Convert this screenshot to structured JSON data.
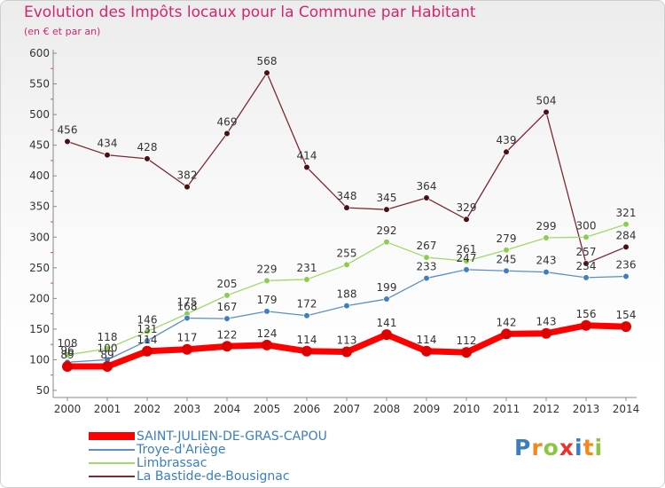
{
  "header": {
    "title": "Evolution des Impôts locaux pour la Commune par Habitant",
    "subtitle": "(en € et par an)"
  },
  "logo": {
    "letters": [
      "P",
      "r",
      "o",
      "x",
      "i",
      "t",
      "i"
    ]
  },
  "chart_data": {
    "type": "line",
    "title": "Evolution des Impôts locaux pour la Commune par Habitant",
    "subtitle": "(en € et par an)",
    "xlabel": "",
    "ylabel": "",
    "x": [
      "2000",
      "2001",
      "2002",
      "2003",
      "2004",
      "2005",
      "2006",
      "2007",
      "2008",
      "2009",
      "2010",
      "2011",
      "2012",
      "2013",
      "2014"
    ],
    "ylim": [
      50,
      600
    ],
    "yticks": [
      50,
      100,
      150,
      200,
      250,
      300,
      350,
      400,
      450,
      500,
      550,
      600
    ],
    "grid": false,
    "legend_position": "bottom-left",
    "series": [
      {
        "name": "SAINT-JULIEN-DE-GRAS-CAPOU",
        "color": "#ff0000",
        "marker_color": "#e00000",
        "values": [
          89,
          89,
          114,
          117,
          122,
          124,
          114,
          113,
          141,
          114,
          112,
          142,
          143,
          156,
          154
        ],
        "labels": [
          "89",
          "89",
          "114",
          "117",
          "122",
          "124",
          "114",
          "113",
          "141",
          "114",
          "112",
          "142",
          "143",
          "156",
          "154"
        ]
      },
      {
        "name": "Troye-d'Ariège",
        "color": "#5b8ec4",
        "marker_color": "#3f7fc0",
        "values": [
          96,
          100,
          131,
          168,
          167,
          179,
          172,
          188,
          199,
          233,
          247,
          245,
          243,
          234,
          236
        ],
        "labels": [
          "96",
          "100",
          "131",
          "168",
          "167",
          "179",
          "172",
          "188",
          "199",
          "233",
          "247",
          "245",
          "243",
          "234",
          "236"
        ]
      },
      {
        "name": "Limbrassac",
        "color": "#9fd96b",
        "marker_color": "#8ccc4f",
        "values": [
          108,
          118,
          146,
          175,
          205,
          229,
          231,
          255,
          292,
          267,
          261,
          279,
          299,
          300,
          321
        ],
        "labels": [
          "108",
          "118",
          "146",
          "175",
          "205",
          "229",
          "231",
          "255",
          "292",
          "267",
          "261",
          "279",
          "299",
          "300",
          "321"
        ]
      },
      {
        "name": "La Bastide-de-Bousignac",
        "color": "#7a2a30",
        "marker_color": "#4a0f14",
        "values": [
          456,
          434,
          428,
          382,
          469,
          568,
          414,
          348,
          345,
          364,
          329,
          439,
          504,
          257,
          284
        ],
        "labels": [
          "456",
          "434",
          "428",
          "382",
          "469",
          "568",
          "414",
          "348",
          "345",
          "364",
          "329",
          "439",
          "504",
          "257",
          "284"
        ]
      }
    ]
  }
}
